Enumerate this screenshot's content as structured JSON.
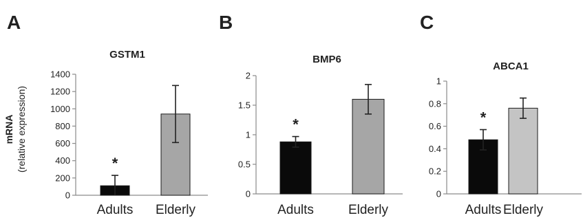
{
  "figure": {
    "ylabel_main": "mRNA",
    "ylabel_sub": "(relative expression)"
  },
  "chart_data": [
    {
      "panel": "A",
      "type": "bar",
      "title": "GSTM1",
      "categories": [
        "Adults",
        "Elderly"
      ],
      "values": [
        110,
        940
      ],
      "errors": [
        120,
        330
      ],
      "bar_colors": [
        "#0a0a0a",
        "#a6a6a6"
      ],
      "significance": [
        "*",
        ""
      ],
      "ylim": [
        0,
        1400
      ],
      "yticks": [
        0,
        200,
        400,
        600,
        800,
        1000,
        1200,
        1400
      ],
      "ytick_labels": [
        "0",
        "200",
        "400",
        "600",
        "800",
        "1000",
        "1200",
        "1400"
      ],
      "grid": false
    },
    {
      "panel": "B",
      "type": "bar",
      "title": "BMP6",
      "categories": [
        "Adults",
        "Elderly"
      ],
      "values": [
        0.88,
        1.6
      ],
      "errors": [
        0.09,
        0.25
      ],
      "bar_colors": [
        "#0a0a0a",
        "#a6a6a6"
      ],
      "significance": [
        "*",
        ""
      ],
      "ylim": [
        0,
        2
      ],
      "yticks": [
        0,
        0.5,
        1,
        1.5,
        2
      ],
      "ytick_labels": [
        "0",
        "0.5",
        "1",
        "1.5",
        "2"
      ],
      "grid": false
    },
    {
      "panel": "C",
      "type": "bar",
      "title": "ABCA1",
      "categories": [
        "Adults",
        "Elderly"
      ],
      "values": [
        0.48,
        0.76
      ],
      "errors": [
        0.09,
        0.09
      ],
      "bar_colors": [
        "#0a0a0a",
        "#c4c4c4"
      ],
      "significance": [
        "*",
        ""
      ],
      "ylim": [
        0,
        1
      ],
      "yticks": [
        0,
        0.2,
        0.4,
        0.6,
        0.8,
        1
      ],
      "ytick_labels": [
        "0",
        "0.2",
        "0.4",
        "0.6",
        "0.8",
        "1"
      ],
      "grid": false
    }
  ]
}
